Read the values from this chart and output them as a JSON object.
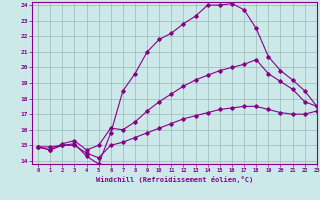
{
  "xlabel": "Windchill (Refroidissement éolien,°C)",
  "xlim": [
    -0.5,
    23
  ],
  "ylim": [
    13.8,
    24.2
  ],
  "xticks": [
    0,
    1,
    2,
    3,
    4,
    5,
    6,
    7,
    8,
    9,
    10,
    11,
    12,
    13,
    14,
    15,
    16,
    17,
    18,
    19,
    20,
    21,
    22,
    23
  ],
  "yticks": [
    14,
    15,
    16,
    17,
    18,
    19,
    20,
    21,
    22,
    23,
    24
  ],
  "bg_color": "#cce8e8",
  "line_color": "#880088",
  "grid_color": "#99bbbb",
  "line1_x": [
    0,
    1,
    2,
    3,
    4,
    5,
    6,
    7,
    8,
    9,
    10,
    11,
    12,
    13,
    14,
    15,
    16,
    17,
    18,
    19,
    20,
    21,
    22,
    23
  ],
  "line1_y": [
    14.9,
    14.7,
    15.0,
    15.1,
    14.3,
    13.8,
    15.8,
    18.5,
    19.6,
    21.0,
    21.8,
    22.2,
    22.8,
    23.3,
    24.0,
    24.0,
    24.1,
    23.7,
    22.5,
    20.7,
    19.8,
    19.2,
    18.5,
    17.5
  ],
  "line2_x": [
    0,
    1,
    2,
    3,
    4,
    5,
    6,
    7,
    8,
    9,
    10,
    11,
    12,
    13,
    14,
    15,
    16,
    17,
    18,
    19,
    20,
    21,
    22,
    23
  ],
  "line2_y": [
    14.9,
    14.7,
    15.1,
    15.3,
    14.7,
    15.0,
    16.1,
    16.0,
    16.5,
    17.2,
    17.8,
    18.3,
    18.8,
    19.2,
    19.5,
    19.8,
    20.0,
    20.2,
    20.5,
    19.6,
    19.1,
    18.6,
    17.8,
    17.5
  ],
  "line3_x": [
    0,
    1,
    2,
    3,
    4,
    5,
    6,
    7,
    8,
    9,
    10,
    11,
    12,
    13,
    14,
    15,
    16,
    17,
    18,
    19,
    20,
    21,
    22,
    23
  ],
  "line3_y": [
    14.9,
    14.9,
    15.0,
    15.0,
    14.5,
    14.2,
    15.0,
    15.2,
    15.5,
    15.8,
    16.1,
    16.4,
    16.7,
    16.9,
    17.1,
    17.3,
    17.4,
    17.5,
    17.5,
    17.3,
    17.1,
    17.0,
    17.0,
    17.2
  ]
}
